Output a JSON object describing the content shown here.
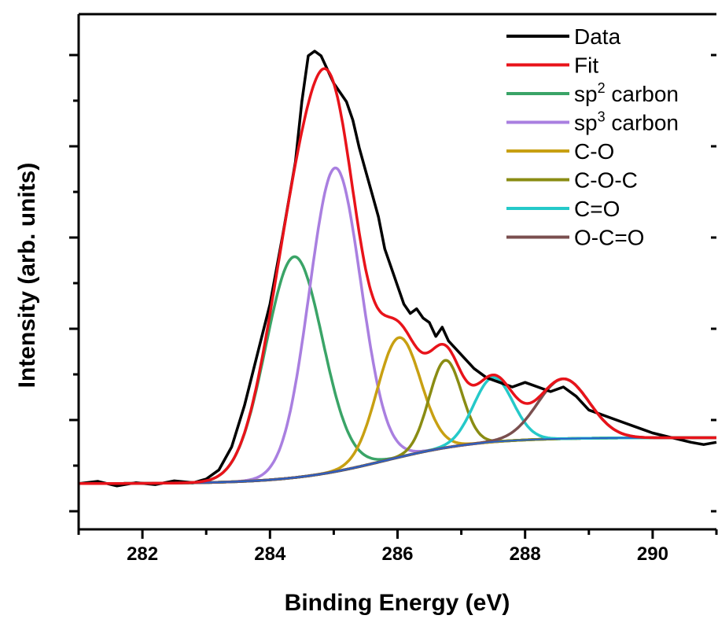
{
  "chart_data": {
    "type": "line",
    "xlabel": "Binding Energy (eV)",
    "ylabel": "Intensity (arb. units)",
    "xlim": [
      281,
      291
    ],
    "ylim": [
      0,
      1.0
    ],
    "x_ticks": [
      "282",
      "284",
      "286",
      "288",
      "290"
    ],
    "y_ticks_labeled": false,
    "legend_position": "top-right",
    "baseline": {
      "start": 0.06,
      "end": 0.16,
      "center": 285.8,
      "width": 0.75
    },
    "series": [
      {
        "name": "Data",
        "color": "#000000",
        "kind": "measured",
        "points": [
          [
            281.0,
            0.06
          ],
          [
            281.3,
            0.065
          ],
          [
            281.6,
            0.055
          ],
          [
            281.9,
            0.062
          ],
          [
            282.2,
            0.058
          ],
          [
            282.5,
            0.066
          ],
          [
            282.8,
            0.062
          ],
          [
            283.0,
            0.07
          ],
          [
            283.2,
            0.09
          ],
          [
            283.4,
            0.14
          ],
          [
            283.6,
            0.23
          ],
          [
            283.8,
            0.34
          ],
          [
            284.0,
            0.45
          ],
          [
            284.2,
            0.6
          ],
          [
            284.4,
            0.76
          ],
          [
            284.5,
            0.89
          ],
          [
            284.6,
            0.99
          ],
          [
            284.7,
            1.0
          ],
          [
            284.8,
            0.99
          ],
          [
            284.9,
            0.96
          ],
          [
            285.0,
            0.93
          ],
          [
            285.1,
            0.91
          ],
          [
            285.2,
            0.89
          ],
          [
            285.3,
            0.85
          ],
          [
            285.4,
            0.79
          ],
          [
            285.5,
            0.74
          ],
          [
            285.6,
            0.69
          ],
          [
            285.7,
            0.64
          ],
          [
            285.8,
            0.57
          ],
          [
            285.9,
            0.53
          ],
          [
            286.0,
            0.49
          ],
          [
            286.1,
            0.45
          ],
          [
            286.2,
            0.43
          ],
          [
            286.3,
            0.44
          ],
          [
            286.4,
            0.42
          ],
          [
            286.5,
            0.41
          ],
          [
            286.6,
            0.38
          ],
          [
            286.7,
            0.4
          ],
          [
            286.8,
            0.37
          ],
          [
            287.0,
            0.34
          ],
          [
            287.2,
            0.31
          ],
          [
            287.4,
            0.29
          ],
          [
            287.6,
            0.28
          ],
          [
            287.8,
            0.27
          ],
          [
            288.0,
            0.28
          ],
          [
            288.2,
            0.27
          ],
          [
            288.4,
            0.26
          ],
          [
            288.6,
            0.27
          ],
          [
            288.8,
            0.25
          ],
          [
            289.0,
            0.22
          ],
          [
            289.2,
            0.21
          ],
          [
            289.4,
            0.2
          ],
          [
            289.6,
            0.19
          ],
          [
            289.8,
            0.18
          ],
          [
            290.0,
            0.17
          ],
          [
            290.3,
            0.16
          ],
          [
            290.6,
            0.15
          ],
          [
            290.8,
            0.145
          ],
          [
            291.0,
            0.15
          ]
        ]
      },
      {
        "name": "Fit",
        "color": "#e8131a",
        "kind": "sum"
      },
      {
        "name": "sp2 carbon",
        "color": "#3aa467",
        "kind": "peak",
        "center": 284.38,
        "fwhm": 1.05,
        "height": 0.48
      },
      {
        "name": "sp3 carbon",
        "color": "#a97fe0",
        "kind": "peak",
        "center": 285.02,
        "fwhm": 0.95,
        "height": 0.66
      },
      {
        "name": "C-O",
        "color": "#c8a012",
        "kind": "peak",
        "center": 286.02,
        "fwhm": 0.8,
        "height": 0.26
      },
      {
        "name": "C-O-C",
        "color": "#8a8c13",
        "kind": "peak",
        "center": 286.75,
        "fwhm": 0.6,
        "height": 0.19
      },
      {
        "name": "C=O",
        "color": "#25c9c9",
        "kind": "peak",
        "center": 287.5,
        "fwhm": 0.72,
        "height": 0.14
      },
      {
        "name": "O-C=O",
        "color": "#7a4f4f",
        "kind": "peak",
        "center": 288.6,
        "fwhm": 0.95,
        "height": 0.13
      }
    ],
    "legend": [
      {
        "label": "Data",
        "sup": "",
        "suffix": ""
      },
      {
        "label": "Fit",
        "sup": "",
        "suffix": ""
      },
      {
        "label": "sp",
        "sup": "2",
        "suffix": " carbon"
      },
      {
        "label": "sp",
        "sup": "3",
        "suffix": " carbon"
      },
      {
        "label": "C-O",
        "sup": "",
        "suffix": ""
      },
      {
        "label": "C-O-C",
        "sup": "",
        "suffix": ""
      },
      {
        "label": "C=O",
        "sup": "",
        "suffix": ""
      },
      {
        "label": "O-C=O",
        "sup": "",
        "suffix": ""
      }
    ]
  }
}
